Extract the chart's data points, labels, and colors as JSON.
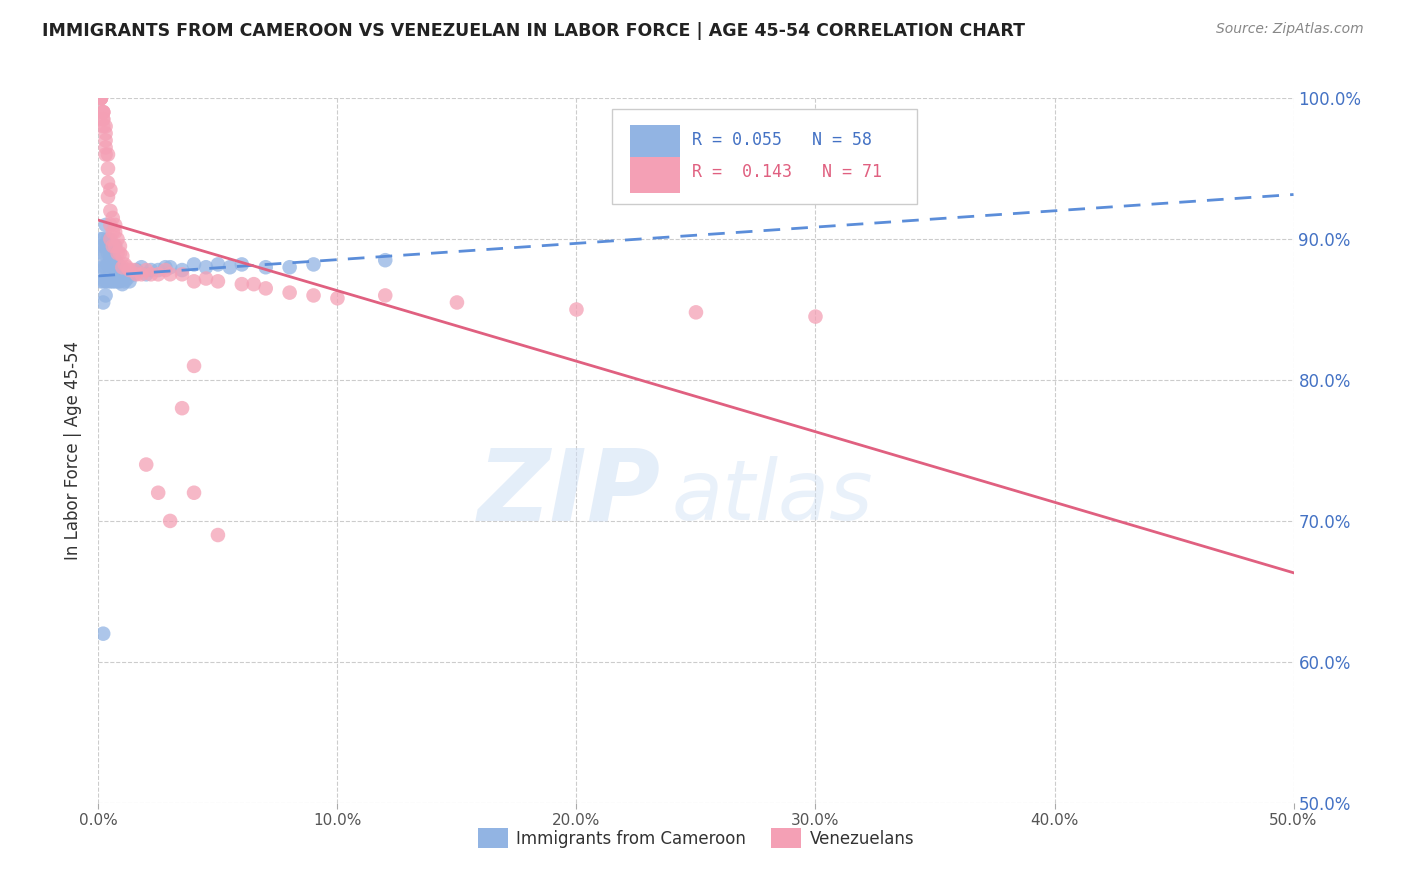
{
  "title": "IMMIGRANTS FROM CAMEROON VS VENEZUELAN IN LABOR FORCE | AGE 45-54 CORRELATION CHART",
  "source": "Source: ZipAtlas.com",
  "ylabel": "In Labor Force | Age 45-54",
  "xlim": [
    0.0,
    0.5
  ],
  "ylim": [
    0.5,
    1.0
  ],
  "xticks": [
    0.0,
    0.1,
    0.2,
    0.3,
    0.4,
    0.5
  ],
  "yticks": [
    0.5,
    0.6,
    0.7,
    0.8,
    0.9,
    1.0
  ],
  "xtick_labels": [
    "0.0%",
    "10.0%",
    "20.0%",
    "30.0%",
    "40.0%",
    "50.0%"
  ],
  "ytick_labels": [
    "50.0%",
    "60.0%",
    "70.0%",
    "80.0%",
    "90.0%",
    "100.0%"
  ],
  "cameroon_R": 0.055,
  "cameroon_N": 58,
  "venezuela_R": 0.143,
  "venezuela_N": 71,
  "cameroon_color": "#92b4e3",
  "venezuela_color": "#f4a0b5",
  "trend_cameroon_color": "#5b8dd9",
  "trend_venezuela_color": "#e06080",
  "watermark_zip": "ZIP",
  "watermark_atlas": "atlas",
  "cam_x": [
    0.001,
    0.001,
    0.001,
    0.001,
    0.002,
    0.002,
    0.002,
    0.002,
    0.002,
    0.002,
    0.003,
    0.003,
    0.003,
    0.003,
    0.003,
    0.004,
    0.004,
    0.004,
    0.004,
    0.005,
    0.005,
    0.005,
    0.005,
    0.006,
    0.006,
    0.006,
    0.007,
    0.007,
    0.007,
    0.007,
    0.008,
    0.008,
    0.009,
    0.009,
    0.01,
    0.01,
    0.011,
    0.012,
    0.013,
    0.015,
    0.016,
    0.018,
    0.02,
    0.022,
    0.025,
    0.028,
    0.03,
    0.035,
    0.04,
    0.045,
    0.05,
    0.055,
    0.06,
    0.07,
    0.08,
    0.09,
    0.002,
    0.12
  ],
  "cam_y": [
    0.87,
    0.88,
    0.89,
    0.9,
    0.855,
    0.87,
    0.88,
    0.89,
    0.895,
    0.9,
    0.86,
    0.87,
    0.88,
    0.895,
    0.91,
    0.87,
    0.882,
    0.89,
    0.9,
    0.87,
    0.878,
    0.888,
    0.895,
    0.87,
    0.88,
    0.89,
    0.87,
    0.878,
    0.885,
    0.895,
    0.87,
    0.882,
    0.87,
    0.88,
    0.868,
    0.878,
    0.87,
    0.872,
    0.87,
    0.875,
    0.878,
    0.88,
    0.875,
    0.878,
    0.878,
    0.88,
    0.88,
    0.878,
    0.882,
    0.88,
    0.882,
    0.88,
    0.882,
    0.88,
    0.88,
    0.882,
    0.62,
    0.885
  ],
  "ven_x": [
    0.001,
    0.001,
    0.001,
    0.001,
    0.001,
    0.001,
    0.001,
    0.002,
    0.002,
    0.002,
    0.002,
    0.002,
    0.002,
    0.003,
    0.003,
    0.003,
    0.003,
    0.003,
    0.004,
    0.004,
    0.004,
    0.004,
    0.005,
    0.005,
    0.005,
    0.005,
    0.006,
    0.006,
    0.006,
    0.007,
    0.007,
    0.007,
    0.008,
    0.008,
    0.009,
    0.009,
    0.01,
    0.01,
    0.011,
    0.012,
    0.013,
    0.015,
    0.016,
    0.018,
    0.02,
    0.022,
    0.025,
    0.028,
    0.03,
    0.035,
    0.04,
    0.045,
    0.05,
    0.06,
    0.065,
    0.07,
    0.08,
    0.09,
    0.1,
    0.12,
    0.15,
    0.2,
    0.25,
    0.3,
    0.035,
    0.04,
    0.02,
    0.025,
    0.03,
    0.04,
    0.05
  ],
  "ven_y": [
    1.0,
    1.0,
    1.0,
    1.0,
    1.0,
    1.0,
    1.0,
    0.99,
    0.99,
    0.99,
    0.985,
    0.985,
    0.98,
    0.98,
    0.975,
    0.97,
    0.965,
    0.96,
    0.93,
    0.94,
    0.95,
    0.96,
    0.9,
    0.91,
    0.92,
    0.935,
    0.895,
    0.905,
    0.915,
    0.895,
    0.905,
    0.91,
    0.89,
    0.9,
    0.89,
    0.895,
    0.88,
    0.888,
    0.882,
    0.88,
    0.878,
    0.878,
    0.875,
    0.875,
    0.878,
    0.875,
    0.875,
    0.878,
    0.875,
    0.875,
    0.87,
    0.872,
    0.87,
    0.868,
    0.868,
    0.865,
    0.862,
    0.86,
    0.858,
    0.86,
    0.855,
    0.85,
    0.848,
    0.845,
    0.78,
    0.81,
    0.74,
    0.72,
    0.7,
    0.72,
    0.69
  ]
}
